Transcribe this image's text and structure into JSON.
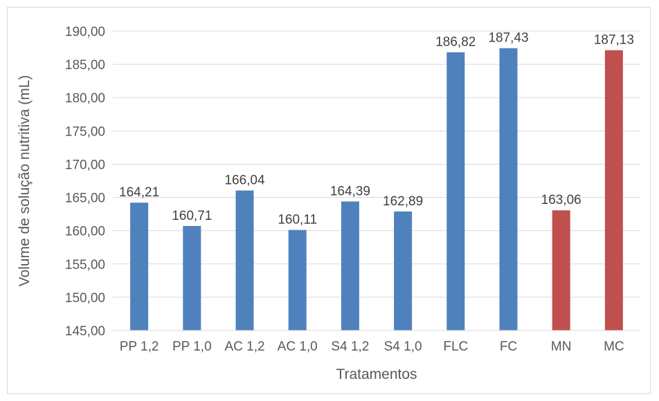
{
  "chart_data": {
    "type": "bar",
    "xlabel": "Tratamentos",
    "ylabel": "Volume de solução nutritiva (mL)",
    "ylim": [
      145,
      190
    ],
    "ytick_step": 5,
    "grid": true,
    "legend": "none",
    "categories": [
      "PP 1,2",
      "PP 1,0",
      "AC 1,2",
      "AC 1,0",
      "S4 1,2",
      "S4 1,0",
      "FLC",
      "FC",
      "MN",
      "MC"
    ],
    "values": [
      164.21,
      160.71,
      166.04,
      160.11,
      164.39,
      162.89,
      186.82,
      187.43,
      163.06,
      187.13
    ],
    "value_labels": [
      "164,21",
      "160,71",
      "166,04",
      "160,11",
      "164,39",
      "162,89",
      "186,82",
      "187,43",
      "163,06",
      "187,13"
    ],
    "ytick_labels": [
      "145,00",
      "150,00",
      "155,00",
      "160,00",
      "165,00",
      "170,00",
      "175,00",
      "180,00",
      "185,00",
      "190,00"
    ],
    "bar_colors": [
      "#4f81bd",
      "#4f81bd",
      "#4f81bd",
      "#4f81bd",
      "#4f81bd",
      "#4f81bd",
      "#4f81bd",
      "#4f81bd",
      "#c0504d",
      "#c0504d"
    ]
  }
}
